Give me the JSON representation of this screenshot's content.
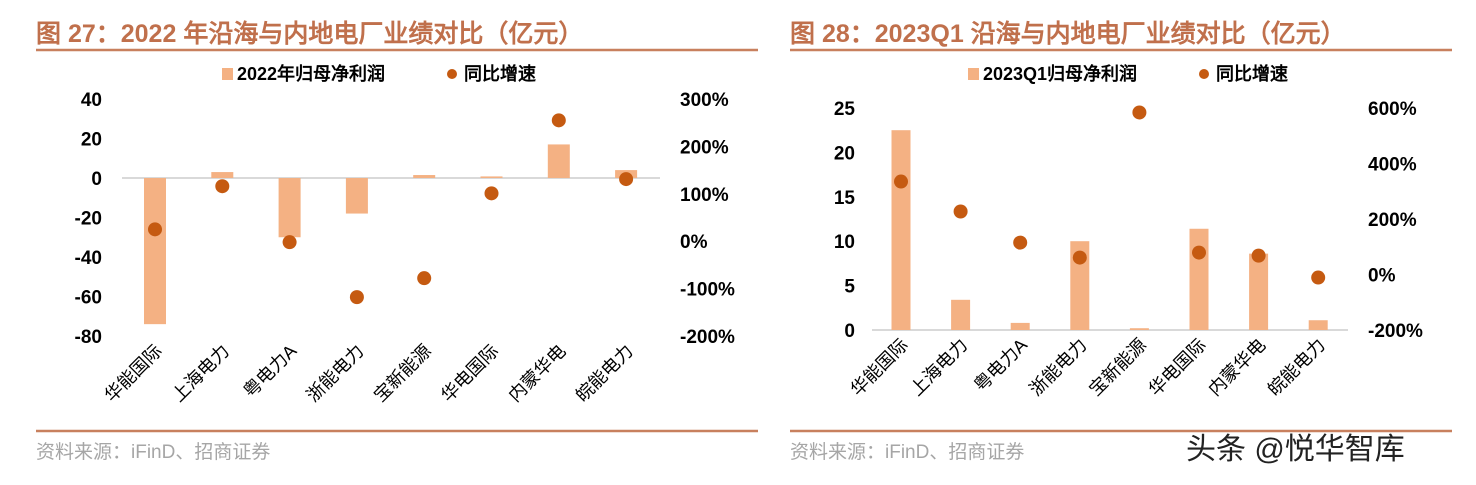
{
  "colors": {
    "bar": "#f4b183",
    "dot": "#c55a11",
    "title": "#c0704c",
    "rule": "#c8805e",
    "axis": "#d9d9d9"
  },
  "source": "资料来源：iFinD、招商证券",
  "watermark": "头条 @悦华智库",
  "chart_data": [
    {
      "type": "bar",
      "title": "图 27：2022 年沿海与内地电厂业绩对比（亿元）",
      "categories": [
        "华能国际",
        "上海电力",
        "粤电力A",
        "浙能电力",
        "宝新能源",
        "华电国际",
        "内蒙华电",
        "皖能电力"
      ],
      "series": [
        {
          "name": "2022年归母净利润",
          "type": "bar",
          "axis": "left",
          "values": [
            -74,
            3,
            -30,
            -18,
            1.5,
            0.8,
            17,
            4
          ]
        },
        {
          "name": "同比增速",
          "type": "scatter",
          "axis": "right",
          "values": [
            25,
            116,
            -2,
            -118,
            -78,
            101,
            255,
            131
          ]
        }
      ],
      "left_axis": {
        "ylim": [
          -80,
          40
        ],
        "ticks": [
          "40",
          "20",
          "0",
          "-20",
          "-40",
          "-60",
          "-80"
        ]
      },
      "right_axis": {
        "ylim": [
          -200,
          300
        ],
        "unit": "%",
        "ticks": [
          "300%",
          "200%",
          "100%",
          "0%",
          "-100%",
          "-200%"
        ]
      },
      "legend": "top",
      "grid": false
    },
    {
      "type": "bar",
      "title": "图 28：2023Q1 沿海与内地电厂业绩对比（亿元）",
      "categories": [
        "华能国际",
        "上海电力",
        "粤电力A",
        "浙能电力",
        "宝新能源",
        "华电国际",
        "内蒙华电",
        "皖能电力"
      ],
      "series": [
        {
          "name": "2023Q1归母净利润",
          "type": "bar",
          "axis": "left",
          "values": [
            22.5,
            3.4,
            0.8,
            10,
            0.2,
            11.4,
            8.6,
            1.1
          ]
        },
        {
          "name": "同比增速",
          "type": "scatter",
          "axis": "right",
          "values": [
            335,
            227,
            115,
            61,
            584,
            79,
            68,
            -11
          ]
        }
      ],
      "left_axis": {
        "ylim": [
          0,
          25
        ],
        "ticks": [
          "25",
          "20",
          "15",
          "10",
          "5",
          "0"
        ]
      },
      "right_axis": {
        "ylim": [
          -200,
          600
        ],
        "unit": "%",
        "ticks": [
          "600%",
          "400%",
          "200%",
          "0%",
          "-200%"
        ]
      },
      "legend": "top",
      "grid": false
    }
  ]
}
